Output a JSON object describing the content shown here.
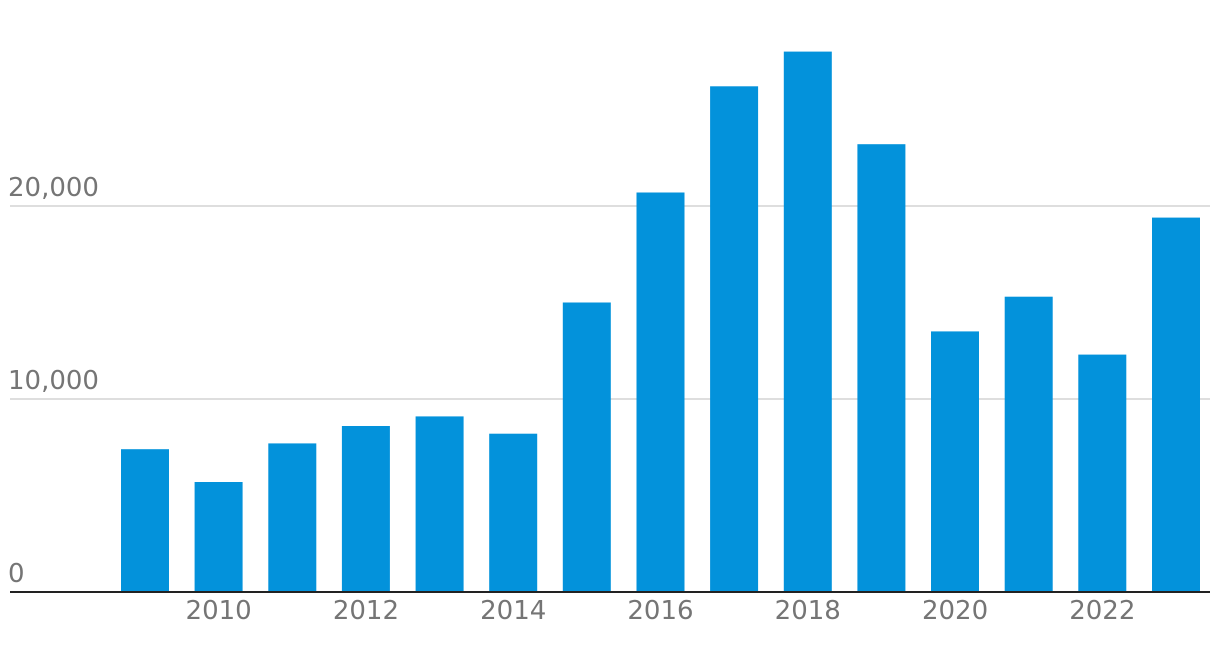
{
  "chart_data": {
    "type": "bar",
    "categories": [
      "2009",
      "2010",
      "2011",
      "2012",
      "2013",
      "2014",
      "2015",
      "2016",
      "2017",
      "2018",
      "2019",
      "2020",
      "2021",
      "2022",
      "2023"
    ],
    "values": [
      7400,
      5700,
      7700,
      8600,
      9100,
      8200,
      15000,
      20700,
      26200,
      28000,
      23200,
      13500,
      15300,
      12300,
      19400
    ],
    "x_tick_labels": [
      "2010",
      "2012",
      "2014",
      "2016",
      "2018",
      "2020",
      "2022"
    ],
    "y_ticks": [
      0,
      10000,
      20000
    ],
    "y_tick_labels": [
      "0",
      "10,000",
      "20,000"
    ],
    "ylim": [
      0,
      30000
    ],
    "grid": true,
    "bar_color": "#0392db",
    "title": "",
    "xlabel": "",
    "ylabel": ""
  }
}
